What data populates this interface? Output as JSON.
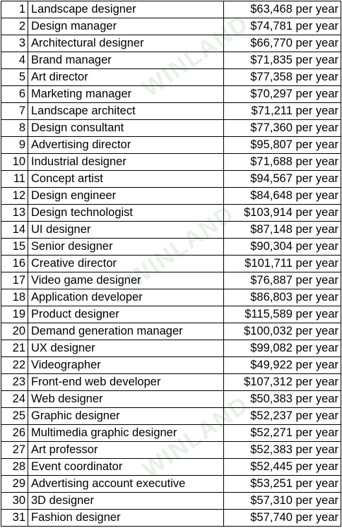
{
  "watermark": "WINLAND",
  "rows": [
    {
      "num": "1",
      "title": "Landscape designer",
      "salary": "$63,468 per year"
    },
    {
      "num": "2",
      "title": "Design manager",
      "salary": "$74,781 per year"
    },
    {
      "num": "3",
      "title": "Architectural designer",
      "salary": "$66,770 per year"
    },
    {
      "num": "4",
      "title": "Brand manager",
      "salary": "$71,835 per year"
    },
    {
      "num": "5",
      "title": "Art director",
      "salary": "$77,358 per year"
    },
    {
      "num": "6",
      "title": "Marketing manager",
      "salary": "$70,297 per year"
    },
    {
      "num": "7",
      "title": "Landscape architect",
      "salary": "$71,211 per year"
    },
    {
      "num": "8",
      "title": "Design consultant",
      "salary": "$77,360 per year"
    },
    {
      "num": "9",
      "title": "Advertising director",
      "salary": "$95,807 per year"
    },
    {
      "num": "10",
      "title": "Industrial designer",
      "salary": "$71,688 per year"
    },
    {
      "num": "11",
      "title": "Concept artist",
      "salary": "$94,567 per year"
    },
    {
      "num": "12",
      "title": "Design engineer",
      "salary": "$84,648 per year"
    },
    {
      "num": "13",
      "title": "Design technologist",
      "salary": "$103,914 per year"
    },
    {
      "num": "14",
      "title": "UI designer",
      "salary": "$87,148 per year"
    },
    {
      "num": "15",
      "title": "Senior designer",
      "salary": "$90,304 per year"
    },
    {
      "num": "16",
      "title": "Creative director",
      "salary": "$101,711 per year"
    },
    {
      "num": "17",
      "title": "Video game designer",
      "salary": "$76,887 per year"
    },
    {
      "num": "18",
      "title": "Application developer",
      "salary": "$86,803 per year"
    },
    {
      "num": "19",
      "title": "Product designer",
      "salary": "$115,589 per year"
    },
    {
      "num": "20",
      "title": "Demand generation manager",
      "salary": "$100,032 per year"
    },
    {
      "num": "21",
      "title": "UX designer",
      "salary": "$99,082 per year"
    },
    {
      "num": "22",
      "title": "Videographer",
      "salary": "$49,922 per year"
    },
    {
      "num": "23",
      "title": "Front-end web developer",
      "salary": "$107,312 per year"
    },
    {
      "num": "24",
      "title": "Web designer",
      "salary": "$50,383 per year"
    },
    {
      "num": "25",
      "title": "Graphic designer",
      "salary": "$52,237 per year"
    },
    {
      "num": "26",
      "title": "Multimedia graphic designer",
      "salary": "$52,271 per year"
    },
    {
      "num": "27",
      "title": "Art professor",
      "salary": "$52,383 per year"
    },
    {
      "num": "28",
      "title": "Event coordinator",
      "salary": "$52,445 per year"
    },
    {
      "num": "29",
      "title": "Advertising account executive",
      "salary": "$53,251 per year"
    },
    {
      "num": "30",
      "title": "3D designer",
      "salary": "$57,310 per year"
    },
    {
      "num": "31",
      "title": "Fashion designer",
      "salary": "$57,740 per year"
    }
  ]
}
